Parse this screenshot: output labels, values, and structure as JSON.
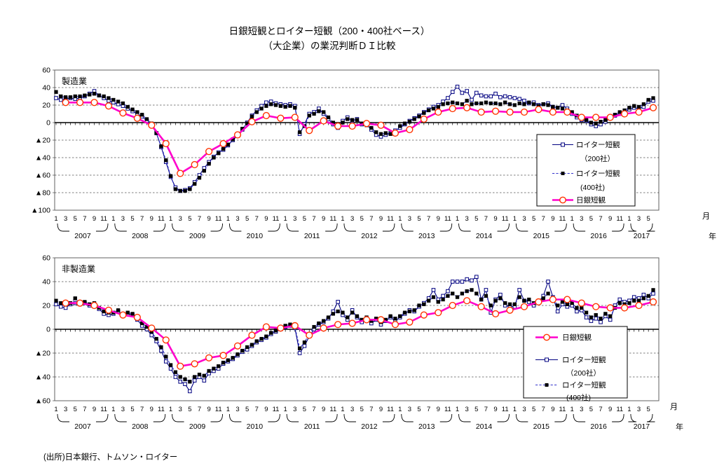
{
  "page": {
    "title_line1": "日銀短観とロイター短観（200・400社ベース）",
    "title_line2": "（大企業）の業況判断ＤＩ比較",
    "source": "(出所)日本銀行、トムソン・ロイター",
    "unit_month": "月",
    "unit_year": "年"
  },
  "chart_data": [
    {
      "type": "line",
      "area_label": "製造業",
      "ylim": [
        -100,
        60
      ],
      "ytick_step": 20,
      "ytick_labels": [
        "60",
        "40",
        "20",
        "0",
        "▲20",
        "▲40",
        "▲60",
        "▲80",
        "▲100"
      ],
      "grid": "dashed-horizontal",
      "x_years": [
        {
          "year": "2007",
          "n_months": 12,
          "month_labels": [
            "1",
            "3",
            "5",
            "7",
            "9",
            "11"
          ]
        },
        {
          "year": "2008",
          "n_months": 12,
          "month_labels": [
            "1",
            "3",
            "5",
            "7",
            "9",
            "11"
          ]
        },
        {
          "year": "2009",
          "n_months": 12,
          "month_labels": [
            "1",
            "3",
            "5",
            "7",
            "9",
            "11"
          ]
        },
        {
          "year": "2010",
          "n_months": 12,
          "month_labels": [
            "1",
            "3",
            "5",
            "7",
            "9",
            "11"
          ]
        },
        {
          "year": "2011",
          "n_months": 12,
          "month_labels": [
            "1",
            "3",
            "5",
            "7",
            "9",
            "11"
          ]
        },
        {
          "year": "2012",
          "n_months": 12,
          "month_labels": [
            "1",
            "3",
            "5",
            "7",
            "9",
            "11"
          ]
        },
        {
          "year": "2013",
          "n_months": 12,
          "month_labels": [
            "1",
            "3",
            "5",
            "7",
            "9",
            "11"
          ]
        },
        {
          "year": "2014",
          "n_months": 12,
          "month_labels": [
            "1",
            "3",
            "5",
            "7",
            "9",
            "11"
          ]
        },
        {
          "year": "2015",
          "n_months": 12,
          "month_labels": [
            "1",
            "3",
            "5",
            "7",
            "9",
            "11"
          ]
        },
        {
          "year": "2016",
          "n_months": 12,
          "month_labels": [
            "1",
            "3",
            "5",
            "7",
            "9",
            "11"
          ]
        },
        {
          "year": "2017",
          "n_months": 6,
          "month_labels": [
            "1",
            "3",
            "5"
          ]
        }
      ],
      "legend_order": [
        "reuters200",
        "reuters400",
        "boj"
      ],
      "series": {
        "reuters200": {
          "label_line1": "ロイター短観",
          "label_line2": "（200社）",
          "color": "#000080",
          "marker": "open-square",
          "line_style": "solid",
          "frequency": "monthly",
          "values": [
            28,
            26,
            27,
            28,
            27,
            28,
            30,
            33,
            36,
            31,
            28,
            25,
            23,
            21,
            19,
            16,
            13,
            10,
            7,
            2,
            -3,
            -12,
            -28,
            -45,
            -62,
            -74,
            -78,
            -77,
            -75,
            -68,
            -60,
            -52,
            -45,
            -39,
            -34,
            -31,
            -26,
            -20,
            -15,
            -8,
            0,
            8,
            14,
            19,
            23,
            24,
            22,
            21,
            20,
            21,
            19,
            -13,
            -2,
            10,
            12,
            16,
            10,
            4,
            -2,
            -6,
            2,
            6,
            2,
            4,
            -2,
            -2,
            -8,
            -14,
            -16,
            -14,
            -12,
            -9,
            -6,
            -2,
            2,
            5,
            8,
            12,
            15,
            18,
            20,
            24,
            28,
            35,
            41,
            34,
            36,
            26,
            34,
            31,
            30,
            30,
            33,
            29,
            30,
            29,
            28,
            27,
            25,
            22,
            23,
            20,
            21,
            22,
            18,
            17,
            20,
            16,
            10,
            6,
            3,
            2,
            -2,
            -4,
            -2,
            1,
            5,
            8,
            10,
            12,
            15,
            17,
            16,
            18,
            24,
            25
          ]
        },
        "reuters400": {
          "label_line1": "ロイター短観",
          "label_line2": "(400社)",
          "color": "#3333CC",
          "marker_color": "#000000",
          "marker": "filled-square",
          "line_style": "dashed",
          "frequency": "monthly",
          "values": [
            35,
            30,
            29,
            29,
            30,
            30,
            31,
            32,
            33,
            31,
            30,
            28,
            26,
            24,
            22,
            18,
            15,
            12,
            9,
            4,
            -1,
            -12,
            -27,
            -43,
            -61,
            -76,
            -78,
            -78,
            -76,
            -70,
            -63,
            -55,
            -47,
            -40,
            -35,
            -30,
            -25,
            -19,
            -14,
            -7,
            -1,
            7,
            12,
            16,
            19,
            21,
            20,
            19,
            18,
            19,
            17,
            -11,
            -4,
            8,
            10,
            13,
            12,
            6,
            0,
            -4,
            0,
            4,
            3,
            3,
            -1,
            -3,
            -6,
            -11,
            -13,
            -12,
            -13,
            -11,
            -4,
            -1,
            1,
            4,
            7,
            11,
            14,
            16,
            18,
            21,
            22,
            23,
            22,
            21,
            25,
            21,
            22,
            22,
            23,
            22,
            22,
            21,
            23,
            21,
            20,
            22,
            21,
            23,
            21,
            19,
            21,
            20,
            18,
            17,
            16,
            14,
            12,
            8,
            5,
            3,
            0,
            -1,
            1,
            3,
            6,
            9,
            12,
            14,
            17,
            19,
            18,
            21,
            26,
            28
          ]
        },
        "boj": {
          "label_line1": "日銀短観",
          "color": "#FF00CC",
          "marker_color": "#FF3300",
          "marker": "open-circle",
          "line_style": "solid-thick",
          "frequency": "quarterly",
          "values": [
            23,
            23,
            23,
            19,
            11,
            5,
            -3,
            -24,
            -58,
            -48,
            -33,
            -24,
            -14,
            1,
            8,
            5,
            6,
            -9,
            2,
            -4,
            -4,
            -1,
            -3,
            -12,
            -8,
            4,
            12,
            16,
            17,
            12,
            13,
            12,
            12,
            15,
            12,
            12,
            6,
            6,
            6,
            10,
            12,
            17
          ]
        }
      }
    },
    {
      "type": "line",
      "area_label": "非製造業",
      "ylim": [
        -60,
        60
      ],
      "ytick_step": 20,
      "ytick_labels": [
        "60",
        "40",
        "20",
        "0",
        "▲20",
        "▲40",
        "▲60"
      ],
      "grid": "dashed-horizontal",
      "x_years": [
        {
          "year": "2007",
          "n_months": 12,
          "month_labels": [
            "1",
            "3",
            "5",
            "7",
            "9",
            "11"
          ]
        },
        {
          "year": "2008",
          "n_months": 12,
          "month_labels": [
            "1",
            "3",
            "5",
            "7",
            "9",
            "11"
          ]
        },
        {
          "year": "2009",
          "n_months": 12,
          "month_labels": [
            "1",
            "3",
            "5",
            "7",
            "9",
            "11"
          ]
        },
        {
          "year": "2010",
          "n_months": 12,
          "month_labels": [
            "1",
            "3",
            "5",
            "7",
            "9",
            "11"
          ]
        },
        {
          "year": "2011",
          "n_months": 12,
          "month_labels": [
            "1",
            "3",
            "5",
            "7",
            "9",
            "11"
          ]
        },
        {
          "year": "2012",
          "n_months": 12,
          "month_labels": [
            "1",
            "3",
            "5",
            "7",
            "9",
            "11"
          ]
        },
        {
          "year": "2013",
          "n_months": 12,
          "month_labels": [
            "1",
            "3",
            "5",
            "7",
            "9",
            "11"
          ]
        },
        {
          "year": "2014",
          "n_months": 12,
          "month_labels": [
            "1",
            "3",
            "5",
            "7",
            "9",
            "11"
          ]
        },
        {
          "year": "2015",
          "n_months": 12,
          "month_labels": [
            "1",
            "3",
            "5",
            "7",
            "9",
            "11"
          ]
        },
        {
          "year": "2016",
          "n_months": 12,
          "month_labels": [
            "1",
            "3",
            "5",
            "7",
            "9",
            "11"
          ]
        },
        {
          "year": "2017",
          "n_months": 6,
          "month_labels": [
            "1",
            "3",
            "5"
          ]
        }
      ],
      "legend_order": [
        "boj",
        "reuters200",
        "reuters400"
      ],
      "series": {
        "boj": {
          "label_line1": "日銀短観",
          "color": "#FF00CC",
          "marker_color": "#FF3300",
          "marker": "open-circle",
          "line_style": "solid-thick",
          "frequency": "quarterly",
          "values": [
            22,
            22,
            20,
            16,
            12,
            10,
            1,
            -9,
            -31,
            -29,
            -24,
            -22,
            -14,
            -5,
            2,
            1,
            3,
            -5,
            1,
            4,
            5,
            8,
            8,
            4,
            6,
            12,
            14,
            20,
            24,
            19,
            13,
            16,
            19,
            23,
            25,
            25,
            22,
            19,
            18,
            18,
            20,
            23
          ]
        },
        "reuters200": {
          "label_line1": "ロイター短観",
          "label_line2": "（200社）",
          "color": "#000080",
          "marker": "open-square",
          "line_style": "solid",
          "frequency": "monthly",
          "values": [
            21,
            19,
            18,
            21,
            22,
            21,
            22,
            20,
            21,
            17,
            13,
            12,
            13,
            15,
            12,
            13,
            12,
            8,
            3,
            0,
            -5,
            -10,
            -18,
            -27,
            -33,
            -40,
            -44,
            -46,
            -52,
            -43,
            -40,
            -43,
            -37,
            -35,
            -33,
            -29,
            -27,
            -25,
            -22,
            -19,
            -17,
            -14,
            -11,
            -9,
            -7,
            -4,
            -2,
            0,
            2,
            3,
            1,
            -20,
            -14,
            -6,
            0,
            4,
            6,
            9,
            15,
            23,
            12,
            8,
            16,
            10,
            6,
            9,
            5,
            8,
            4,
            7,
            10,
            7,
            10,
            13,
            16,
            15,
            19,
            22,
            26,
            33,
            25,
            28,
            32,
            40,
            40,
            40,
            42,
            41,
            44,
            25,
            33,
            14,
            25,
            29,
            20,
            19,
            19,
            33,
            24,
            23,
            20,
            23,
            28,
            40,
            27,
            15,
            21,
            19,
            20,
            15,
            16,
            10,
            7,
            9,
            6,
            11,
            8,
            20,
            25,
            23,
            24,
            27,
            26,
            29,
            26,
            30
          ]
        },
        "reuters400": {
          "label_line1": "ロイター短観",
          "label_line2": "(400社)",
          "color": "#3333CC",
          "marker_color": "#000000",
          "marker": "filled-square",
          "line_style": "dashed",
          "frequency": "monthly",
          "values": [
            24,
            22,
            21,
            22,
            26,
            22,
            23,
            21,
            22,
            18,
            15,
            14,
            14,
            16,
            13,
            14,
            13,
            9,
            5,
            2,
            -2,
            -8,
            -15,
            -23,
            -30,
            -36,
            -40,
            -42,
            -44,
            -40,
            -38,
            -39,
            -35,
            -33,
            -31,
            -28,
            -26,
            -24,
            -21,
            -18,
            -15,
            -13,
            -10,
            -8,
            -6,
            -3,
            -1,
            1,
            3,
            4,
            2,
            -16,
            -11,
            -4,
            2,
            5,
            7,
            10,
            13,
            15,
            14,
            10,
            14,
            11,
            8,
            10,
            7,
            9,
            6,
            8,
            11,
            9,
            11,
            14,
            15,
            16,
            20,
            21,
            24,
            27,
            23,
            25,
            28,
            30,
            27,
            30,
            32,
            33,
            30,
            25,
            28,
            20,
            24,
            26,
            22,
            21,
            21,
            27,
            24,
            25,
            22,
            24,
            26,
            30,
            26,
            20,
            23,
            21,
            22,
            18,
            18,
            14,
            10,
            12,
            9,
            13,
            11,
            18,
            22,
            21,
            22,
            24,
            24,
            26,
            28,
            33
          ]
        }
      }
    }
  ]
}
